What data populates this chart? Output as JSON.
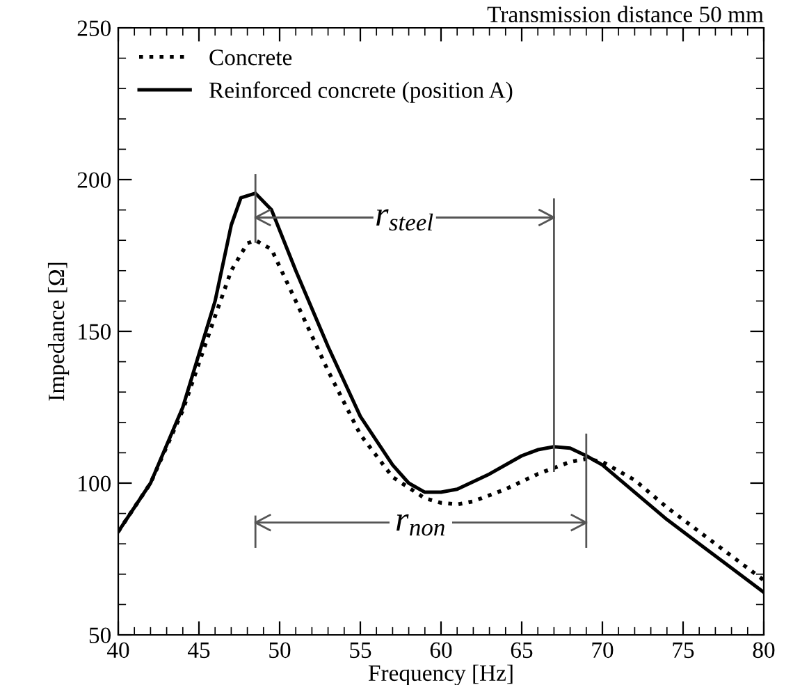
{
  "chart_data": {
    "type": "line",
    "subtitle": "Transmission distance 50 mm",
    "xlabel": "Frequency [Hz]",
    "ylabel": "Impedance [Ω]",
    "xlim": [
      40,
      80
    ],
    "xticks": [
      40,
      45,
      50,
      55,
      60,
      65,
      70,
      75,
      80
    ],
    "ylim": [
      50,
      250
    ],
    "yticks": [
      50,
      100,
      150,
      200,
      250
    ],
    "grid": false,
    "legend": "top left",
    "series": [
      {
        "name": "Concrete",
        "color": "#000000",
        "line_style": "dotted",
        "x": [
          40,
          42,
          44,
          46,
          47,
          48,
          48.5,
          49.5,
          51,
          53,
          55,
          57,
          59,
          60,
          61,
          62,
          64,
          66,
          68,
          69,
          70,
          72,
          74,
          76,
          78,
          80
        ],
        "values": [
          84,
          100,
          124,
          155,
          170,
          179,
          180,
          177,
          160,
          137,
          116,
          102,
          95,
          93.5,
          93,
          94,
          98,
          103,
          107,
          108,
          107,
          101,
          92,
          84,
          76,
          68
        ]
      },
      {
        "name": "Reinforced concrete (position A)",
        "color": "#000000",
        "line_style": "solid",
        "x": [
          40,
          42,
          44,
          46,
          47,
          47.6,
          48.5,
          49.5,
          51,
          53,
          55,
          57,
          58,
          59,
          60,
          61,
          63,
          65,
          66,
          67,
          68,
          69,
          70,
          72,
          74,
          76,
          78,
          80
        ],
        "values": [
          84,
          100,
          125,
          160,
          185,
          194,
          195.5,
          190,
          170,
          145,
          122,
          106,
          100,
          97,
          97,
          98,
          103,
          109,
          111,
          112,
          111.5,
          109,
          106,
          97,
          88,
          80,
          72,
          64
        ]
      }
    ],
    "annotations": [
      "r$_{non}$",
      "r$_{steel}$"
    ]
  }
}
